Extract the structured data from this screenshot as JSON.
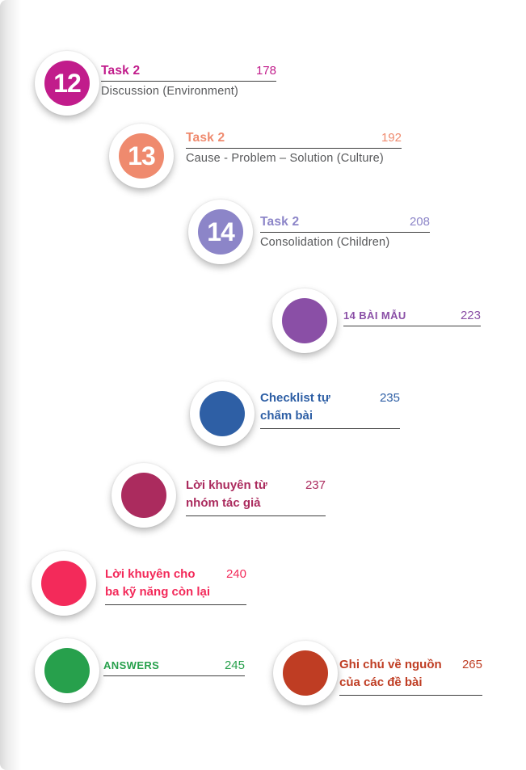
{
  "page": {
    "background": "#ffffff",
    "subtitle_color": "#57585a",
    "rule_color": "#3f3f3f"
  },
  "entries": [
    {
      "number": "12",
      "title": "Task 2",
      "subtitle": "Discussion (Environment)",
      "page": "178",
      "accent": "#c11c8b"
    },
    {
      "number": "13",
      "title": "Task 2",
      "subtitle": "Cause - Problem – Solution (Culture)",
      "page": "192",
      "accent": "#ef8a6e"
    },
    {
      "number": "14",
      "title": "Task 2",
      "subtitle": "Consolidation (Children)",
      "page": "208",
      "accent": "#8c85c8"
    },
    {
      "title": "14 BÀI MẪU",
      "page": "223",
      "accent": "#8a4fa6"
    },
    {
      "title": "Checklist tự\nchấm bài",
      "page": "235",
      "accent": "#2e5fa5"
    },
    {
      "title": "Lời khuyên từ\nnhóm tác giả",
      "page": "237",
      "accent": "#ab2b5e"
    },
    {
      "title": "Lời khuyên cho\nba kỹ năng còn lại",
      "page": "240",
      "accent": "#f32a5a"
    },
    {
      "title": "ANSWERS",
      "page": "245",
      "accent": "#27a04c"
    },
    {
      "title": "Ghi chú về nguồn\ncủa các đề bài",
      "page": "265",
      "accent": "#bf3d23"
    }
  ]
}
